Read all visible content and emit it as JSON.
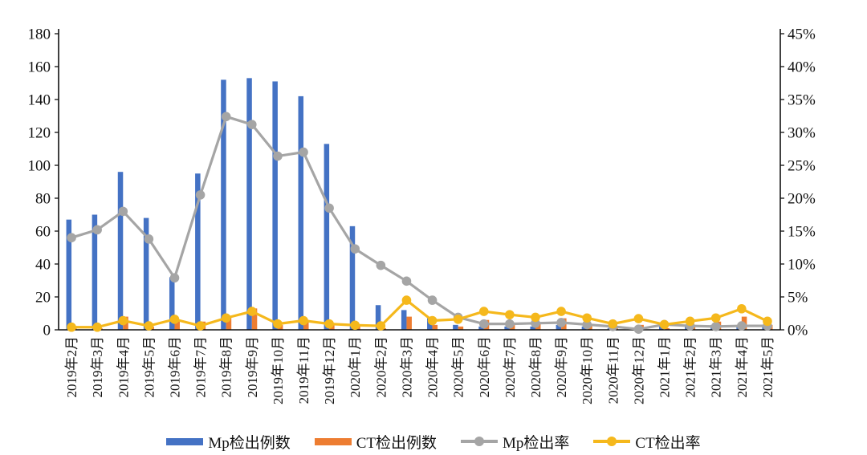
{
  "chart_data": {
    "type": "bar+line",
    "categories": [
      "2019年2月",
      "2019年3月",
      "2019年4月",
      "2019年5月",
      "2019年6月",
      "2019年7月",
      "2019年8月",
      "2019年9月",
      "2019年10月",
      "2019年11月",
      "2019年12月",
      "2020年1月",
      "2020年2月",
      "2020年3月",
      "2020年4月",
      "2020年5月",
      "2020年6月",
      "2020年7月",
      "2020年8月",
      "2020年9月",
      "2020年10月",
      "2020年11月",
      "2020年12月",
      "2021年1月",
      "2021年2月",
      "2021年3月",
      "2021年4月",
      "2021年5月"
    ],
    "y_left": {
      "ticks": [
        "0",
        "20",
        "40",
        "60",
        "80",
        "100",
        "120",
        "140",
        "160",
        "180"
      ],
      "min": 0,
      "max": 180
    },
    "y_right": {
      "ticks": [
        "0%",
        "5%",
        "10%",
        "15%",
        "20%",
        "25%",
        "30%",
        "35%",
        "40%",
        "45%"
      ],
      "min": 0,
      "max": 45
    },
    "series": [
      {
        "name": "Mp检出例数",
        "type": "bar",
        "axis": "left",
        "color": "#4472C4",
        "values": [
          67,
          70,
          96,
          68,
          32,
          95,
          152,
          153,
          151,
          142,
          113,
          63,
          15,
          12,
          7,
          3,
          2,
          2,
          2,
          3,
          2,
          1,
          1,
          4,
          2,
          3,
          2,
          2
        ]
      },
      {
        "name": "CT检出例数",
        "type": "bar",
        "axis": "left",
        "color": "#ED7D31",
        "values": [
          1,
          1,
          8,
          2,
          6,
          5,
          8,
          13,
          3,
          6,
          3,
          2,
          1,
          8,
          3,
          2,
          6,
          3,
          4,
          7,
          3,
          2,
          3,
          1,
          3,
          5,
          8,
          3
        ]
      },
      {
        "name": "Mp检出率",
        "type": "line",
        "axis": "right",
        "color": "#A5A5A5",
        "values": [
          14,
          15.2,
          18,
          13.8,
          7.9,
          20.5,
          32.4,
          31.2,
          26.4,
          27,
          18.5,
          12.3,
          9.8,
          7.4,
          4.5,
          1.9,
          0.9,
          0.9,
          1.0,
          1.1,
          0.8,
          0.5,
          0.1,
          0.8,
          0.6,
          0.5,
          0.6,
          0.6
        ]
      },
      {
        "name": "CT检出率",
        "type": "line",
        "axis": "right",
        "color": "#F5B81C",
        "values": [
          0.4,
          0.4,
          1.4,
          0.6,
          1.6,
          0.6,
          1.8,
          2.8,
          0.9,
          1.4,
          0.9,
          0.7,
          0.6,
          4.5,
          1.4,
          1.6,
          2.8,
          2.3,
          1.9,
          2.8,
          1.8,
          0.9,
          1.7,
          0.8,
          1.3,
          1.8,
          3.2,
          1.3
        ]
      }
    ]
  },
  "legend": {
    "items": [
      {
        "label": "Mp检出例数",
        "color": "#4472C4"
      },
      {
        "label": "CT检出例数",
        "color": "#ED7D31"
      },
      {
        "label": "Mp检出率",
        "color": "#A5A5A5"
      },
      {
        "label": "CT检出率",
        "color": "#F5B81C"
      }
    ]
  }
}
